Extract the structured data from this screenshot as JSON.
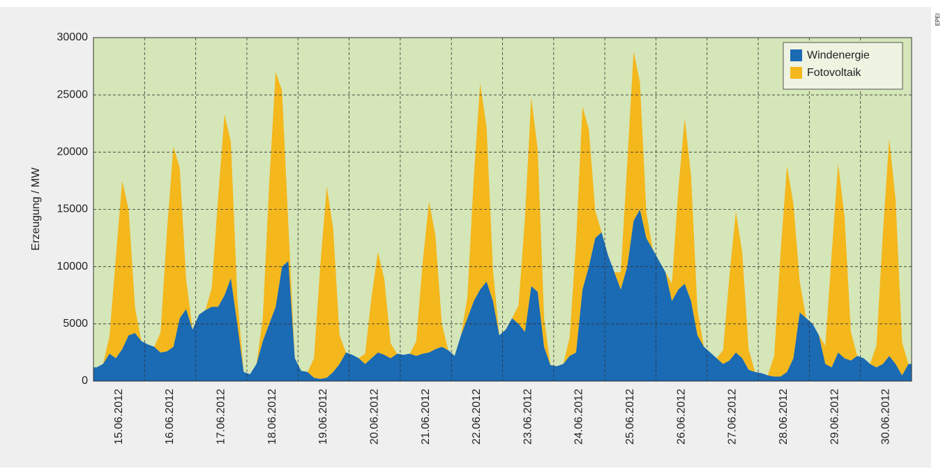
{
  "chart_data": {
    "type": "stacked-area",
    "ylabel": "Erzeugung / MW",
    "source": "EPEI",
    "categories": [
      "15.06.2012",
      "16.06.2012",
      "17.06.2012",
      "18.06.2012",
      "19.06.2012",
      "20.06.2012",
      "21.06.2012",
      "22.06.2012",
      "23.06.2012",
      "24.06.2012",
      "25.06.2012",
      "26.06.2012",
      "27.06.2012",
      "28.06.2012",
      "29.06.2012",
      "30.06.2012"
    ],
    "series": [
      {
        "name": "Windenergie",
        "color": "#1a6ab4",
        "values": [
          [
            1200,
            1500,
            2400,
            2000,
            2800,
            4000,
            4200,
            3500
          ],
          [
            3200,
            3000,
            2500,
            2600,
            3000,
            5500,
            6300,
            4500
          ],
          [
            5800,
            6200,
            6500,
            6500,
            7500,
            9000,
            5000,
            800
          ],
          [
            600,
            1500,
            3500,
            5000,
            6500,
            10000,
            10500,
            2000
          ],
          [
            900,
            800,
            300,
            200,
            300,
            800,
            1500,
            2500
          ],
          [
            2300,
            2000,
            1500,
            2000,
            2500,
            2300,
            2000,
            2400
          ],
          [
            2300,
            2400,
            2200,
            2400,
            2500,
            2800,
            3000,
            2700
          ],
          [
            2200,
            4000,
            5500,
            7000,
            8000,
            8700,
            7000,
            4000
          ],
          [
            4500,
            5500,
            5000,
            4300,
            8300,
            7800,
            3000,
            1400
          ],
          [
            1300,
            1500,
            2200,
            2500,
            8000,
            10000,
            12500,
            13000
          ],
          [
            11000,
            9500,
            8000,
            10000,
            14000,
            15000,
            12500,
            11500
          ],
          [
            10500,
            9500,
            7000,
            8000,
            8500,
            7000,
            4000,
            3000
          ],
          [
            2500,
            2000,
            1500,
            1800,
            2500,
            2000,
            1000,
            800
          ],
          [
            700,
            500,
            400,
            400,
            800,
            2000,
            6000,
            5500
          ],
          [
            5000,
            4000,
            1500,
            1200,
            2500,
            2000,
            1800,
            2200
          ],
          [
            2000,
            1500,
            1200,
            1500,
            2200,
            1500,
            500,
            1500
          ]
        ]
      },
      {
        "name": "Fotovoltaik",
        "color": "#f4b71c",
        "values": [
          [
            0,
            0,
            1470,
            8820,
            14700,
            11000,
            2200,
            0
          ],
          [
            0,
            0,
            1750,
            10500,
            17500,
            13100,
            2600,
            0
          ],
          [
            0,
            0,
            1600,
            9500,
            15800,
            11900,
            2400,
            0
          ],
          [
            0,
            0,
            2000,
            12300,
            20500,
            15400,
            3100,
            0
          ],
          [
            0,
            0,
            1700,
            10000,
            16700,
            12500,
            2500,
            0
          ],
          [
            0,
            0,
            900,
            5300,
            8800,
            6600,
            1300,
            0
          ],
          [
            0,
            0,
            1300,
            7900,
            13200,
            9900,
            2000,
            0
          ],
          [
            0,
            0,
            1800,
            10800,
            18000,
            13500,
            2700,
            0
          ],
          [
            0,
            0,
            1600,
            9900,
            16500,
            12400,
            2500,
            0
          ],
          [
            0,
            0,
            1600,
            9600,
            16000,
            12000,
            2400,
            0
          ],
          [
            0,
            0,
            1500,
            8900,
            14800,
            11100,
            2200,
            0
          ],
          [
            0,
            0,
            1500,
            8700,
            14500,
            10900,
            2200,
            0
          ],
          [
            0,
            0,
            1200,
            7400,
            12300,
            9200,
            1800,
            0
          ],
          [
            0,
            0,
            1800,
            10800,
            18000,
            13500,
            2700,
            0
          ],
          [
            0,
            0,
            1600,
            9900,
            16500,
            12400,
            2500,
            0
          ],
          [
            0,
            0,
            1900,
            11400,
            19000,
            14300,
            2900,
            0
          ]
        ]
      }
    ],
    "ylim": [
      0,
      30000
    ],
    "yticks": [
      0,
      5000,
      10000,
      15000,
      20000,
      25000,
      30000
    ],
    "grid": true,
    "legend": "top-right"
  }
}
